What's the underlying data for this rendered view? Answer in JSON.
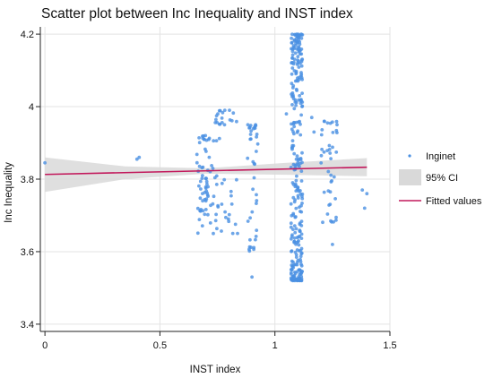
{
  "chart_data": {
    "type": "scatter",
    "title": "Scatter plot between Inc Inequality and INST index",
    "xlabel": "INST index",
    "ylabel": "Inc Inequality",
    "xlim": [
      -0.02,
      1.5
    ],
    "ylim": [
      3.38,
      4.22
    ],
    "x_ticks": [
      "0",
      "0.5",
      "1",
      "1.5"
    ],
    "y_ticks": [
      "3.4",
      "3.6",
      "3.8",
      "4",
      "4.2"
    ],
    "grid": true,
    "legend_position": "right",
    "legend": [
      "Inginet",
      "95% CI",
      "Fitted values"
    ],
    "colors": {
      "points": "#4a90e2",
      "ci_band": "#d9d9d9",
      "fitted_line": "#c2185b",
      "grid": "#e3e3e3"
    },
    "fitted_values": {
      "x": [
        0,
        1.4
      ],
      "y": [
        3.813,
        3.833
      ]
    },
    "ci_band": {
      "x": [
        0,
        0.35,
        0.7,
        1.05,
        1.4
      ],
      "lower": [
        3.765,
        3.8,
        3.815,
        3.812,
        3.808
      ],
      "upper": [
        3.86,
        3.835,
        3.83,
        3.845,
        3.858
      ]
    },
    "series": [
      {
        "name": "Inginet",
        "points": [
          [
            0,
            3.845
          ],
          [
            0.4,
            3.855
          ],
          [
            0.41,
            3.86
          ],
          [
            0.9,
            3.53
          ],
          [
            1.27,
            3.95
          ],
          [
            1.25,
            3.62
          ],
          [
            1.38,
            3.77
          ],
          [
            1.39,
            3.72
          ],
          [
            1.4,
            3.76
          ],
          [
            1.05,
            3.98
          ],
          [
            1.16,
            3.97
          ],
          [
            1.17,
            3.93
          ]
        ],
        "clusters": [
          {
            "x_range": [
              0.66,
              0.72
            ],
            "y_range": [
              3.74,
              3.92
            ],
            "count": 45
          },
          {
            "x_range": [
              0.66,
              0.72
            ],
            "y_range": [
              3.64,
              3.72
            ],
            "count": 12
          },
          {
            "x_range": [
              0.72,
              0.76
            ],
            "y_range": [
              3.65,
              3.98
            ],
            "count": 20
          },
          {
            "x_range": [
              0.75,
              0.84
            ],
            "y_range": [
              3.95,
              3.99
            ],
            "count": 14
          },
          {
            "x_range": [
              0.74,
              0.84
            ],
            "y_range": [
              3.65,
              3.8
            ],
            "count": 18
          },
          {
            "x_range": [
              0.88,
              0.93
            ],
            "y_range": [
              3.6,
              3.95
            ],
            "count": 40
          },
          {
            "x_range": [
              1.07,
              1.12
            ],
            "y_range": [
              3.52,
              4.2
            ],
            "count": 300
          },
          {
            "x_range": [
              1.2,
              1.27
            ],
            "y_range": [
              3.68,
              3.96
            ],
            "count": 40
          }
        ]
      }
    ]
  }
}
